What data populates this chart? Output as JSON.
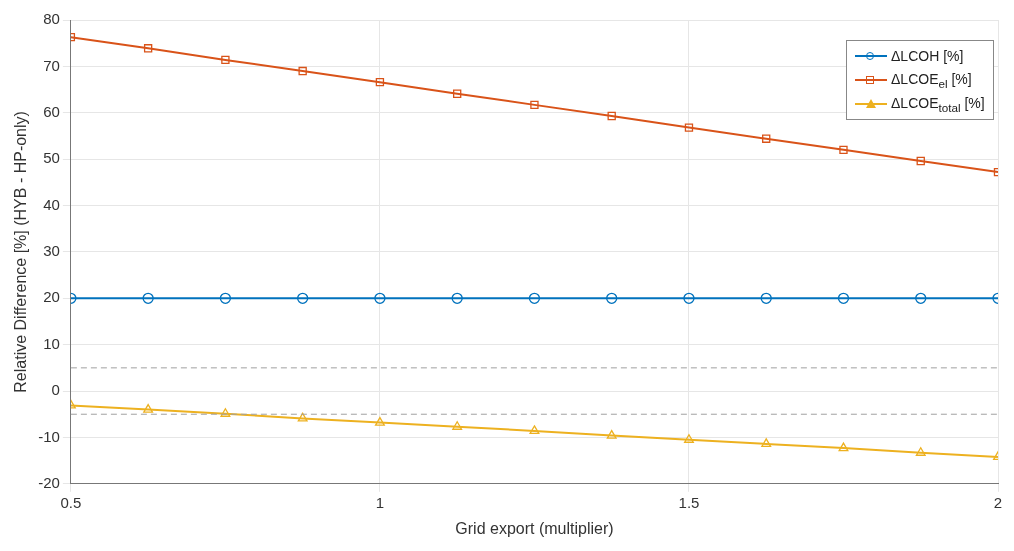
{
  "chart_data": {
    "type": "line",
    "xlabel": "Grid export (multiplier)",
    "ylabel": "Relative Difference [%] (HYB - HP-only)",
    "x": [
      0.5,
      0.625,
      0.75,
      0.875,
      1,
      1.125,
      1.25,
      1.375,
      1.5,
      1.625,
      1.75,
      1.875,
      2
    ],
    "series": [
      {
        "name": "ΔLCOH [%]",
        "color": "#0072bd",
        "marker": "circle",
        "values": [
          20,
          20,
          20,
          20,
          20,
          20,
          20,
          20,
          20,
          20,
          20,
          20,
          20
        ]
      },
      {
        "name": "ΔLCOE$_{el}$ [%]",
        "color": "#d95319",
        "marker": "square",
        "values": [
          76.3,
          73.9,
          71.4,
          69.0,
          66.6,
          64.1,
          61.7,
          59.3,
          56.8,
          54.4,
          52.0,
          49.6,
          47.2
        ]
      },
      {
        "name": "ΔLCOE$_{total}$ [%]",
        "color": "#edb120",
        "marker": "triangle",
        "values": [
          -3.1,
          -4.0,
          -4.9,
          -5.9,
          -6.8,
          -7.7,
          -8.6,
          -9.6,
          -10.5,
          -11.4,
          -12.3,
          -13.3,
          -14.2
        ]
      }
    ],
    "xlim": [
      0.5,
      2
    ],
    "xticks": [
      0.5,
      1,
      1.5,
      2
    ],
    "ylim": [
      -20,
      80
    ],
    "yticks": [
      -20,
      -10,
      0,
      10,
      20,
      30,
      40,
      50,
      60,
      70,
      80
    ],
    "ref_lines": [
      {
        "axis": "y",
        "value": 5,
        "color": "#a0a0a0",
        "line_style": "dashed"
      },
      {
        "axis": "y",
        "value": -5,
        "color": "#a0a0a0",
        "line_style": "dashed"
      }
    ],
    "grid": true,
    "legend": "top right",
    "line_style": "solid"
  }
}
